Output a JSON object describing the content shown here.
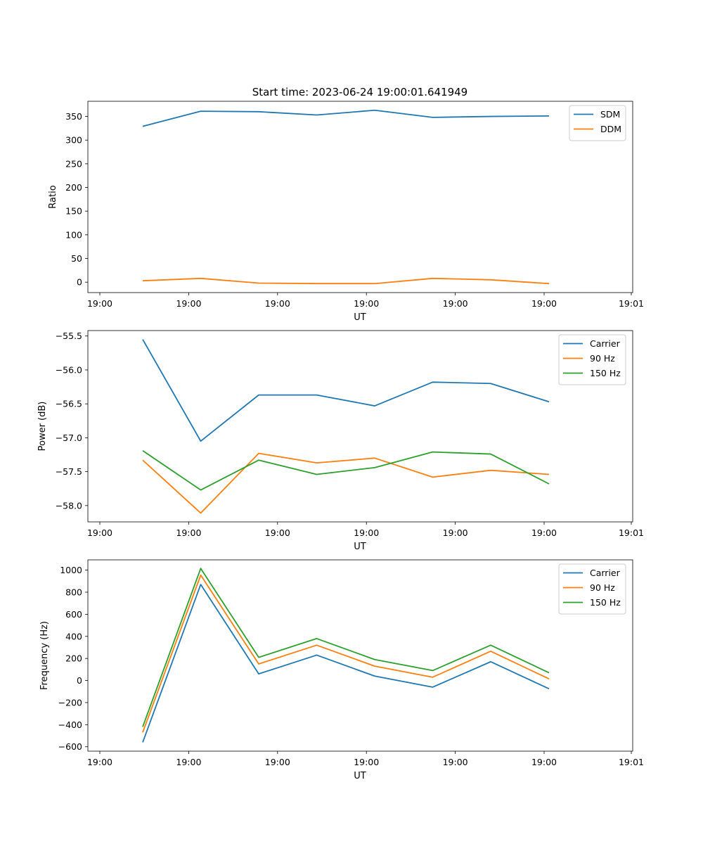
{
  "figure": {
    "title": "Start time: 2023-06-24 19:00:01.641949"
  },
  "chart_data": [
    {
      "type": "line",
      "title": "Start time: 2023-06-24 19:00:01.641949",
      "xlabel": "UT",
      "ylabel": "Ratio",
      "x_tick_labels": [
        "19:00",
        "19:00",
        "19:00",
        "19:00",
        "19:00",
        "19:00",
        "19:01"
      ],
      "y_ticks": [
        0,
        50,
        100,
        150,
        200,
        250,
        300,
        350
      ],
      "ylim": [
        -22,
        382
      ],
      "grid": false,
      "legend_position": "top-right",
      "series": [
        {
          "name": "SDM",
          "color": "#1f77b4",
          "values": [
            329,
            361,
            360,
            353,
            363,
            348,
            350,
            351
          ]
        },
        {
          "name": "DDM",
          "color": "#ff7f0e",
          "values": [
            3,
            8,
            -2,
            -3,
            -3,
            8,
            5,
            -3
          ]
        }
      ]
    },
    {
      "type": "line",
      "xlabel": "UT",
      "ylabel": "Power (dB)",
      "x_tick_labels": [
        "19:00",
        "19:00",
        "19:00",
        "19:00",
        "19:00",
        "19:00",
        "19:01"
      ],
      "y_ticks": [
        -58.0,
        -57.5,
        -57.0,
        -56.5,
        -56.0,
        -55.5
      ],
      "y_tick_labels": [
        "−58.0",
        "−57.5",
        "−57.0",
        "−56.5",
        "−56.0",
        "−55.5"
      ],
      "ylim": [
        -58.24,
        -55.42
      ],
      "grid": false,
      "legend_position": "top-right",
      "series": [
        {
          "name": "Carrier",
          "color": "#1f77b4",
          "values": [
            -55.55,
            -57.05,
            -56.37,
            -56.37,
            -56.53,
            -56.18,
            -56.2,
            -56.47
          ]
        },
        {
          "name": "90 Hz",
          "color": "#ff7f0e",
          "values": [
            -57.33,
            -58.11,
            -57.23,
            -57.37,
            -57.3,
            -57.58,
            -57.48,
            -57.54
          ]
        },
        {
          "name": "150 Hz",
          "color": "#2ca02c",
          "values": [
            -57.19,
            -57.77,
            -57.33,
            -57.54,
            -57.44,
            -57.21,
            -57.24,
            -57.68
          ]
        }
      ]
    },
    {
      "type": "line",
      "xlabel": "UT",
      "ylabel": "Frequency (Hz)",
      "x_tick_labels": [
        "19:00",
        "19:00",
        "19:00",
        "19:00",
        "19:00",
        "19:00",
        "19:01"
      ],
      "y_ticks": [
        -600,
        -400,
        -200,
        0,
        200,
        400,
        600,
        800,
        1000
      ],
      "y_tick_labels": [
        "−600",
        "−400",
        "−200",
        "0",
        "200",
        "400",
        "600",
        "800",
        "1000"
      ],
      "ylim": [
        -640,
        1093
      ],
      "grid": false,
      "legend_position": "top-right",
      "series": [
        {
          "name": "Carrier",
          "color": "#1f77b4",
          "values": [
            -560,
            870,
            60,
            230,
            40,
            -60,
            170,
            -75
          ]
        },
        {
          "name": "90 Hz",
          "color": "#ff7f0e",
          "values": [
            -470,
            955,
            150,
            320,
            130,
            30,
            265,
            15
          ]
        },
        {
          "name": "150 Hz",
          "color": "#2ca02c",
          "values": [
            -420,
            1015,
            210,
            380,
            190,
            90,
            320,
            70
          ]
        }
      ]
    }
  ]
}
